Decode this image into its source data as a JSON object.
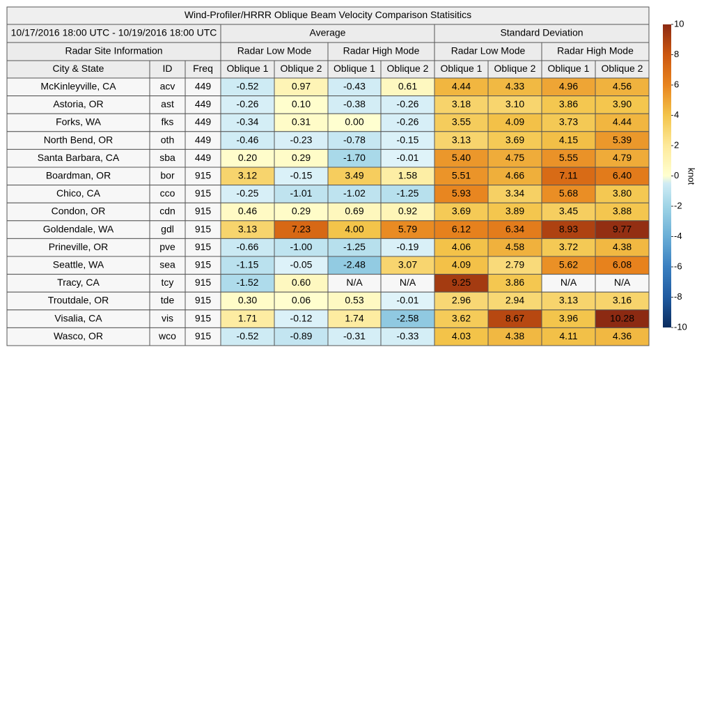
{
  "table": {
    "title": "Wind-Profiler/HRRR Oblique Beam Velocity Comparison Statisitics",
    "header_rows": [
      [
        "10/17/2016 18:00 UTC - 10/19/2016 18:00 UTC",
        "Average",
        "Standard Deviation"
      ],
      [
        "Radar Site Information",
        "Radar Low Mode",
        "Radar High Mode",
        "Radar Low Mode",
        "Radar High Mode"
      ],
      [
        "City & State",
        "ID",
        "Freq",
        "Oblique 1",
        "Oblique 2",
        "Oblique 1",
        "Oblique 2",
        "Oblique 1",
        "Oblique 2",
        "Oblique 1",
        "Oblique 2"
      ]
    ],
    "rows": [
      [
        "McKinleyville, CA",
        "acv",
        "449",
        "-0.52",
        "0.97",
        "-0.43",
        "0.61",
        "4.44",
        "4.33",
        "4.96",
        "4.56"
      ],
      [
        "Astoria, OR",
        "ast",
        "449",
        "-0.26",
        "0.10",
        "-0.38",
        "-0.26",
        "3.18",
        "3.10",
        "3.86",
        "3.90"
      ],
      [
        "Forks, WA",
        "fks",
        "449",
        "-0.34",
        "0.31",
        "0.00",
        "-0.26",
        "3.55",
        "4.09",
        "3.73",
        "4.44"
      ],
      [
        "North Bend, OR",
        "oth",
        "449",
        "-0.46",
        "-0.23",
        "-0.78",
        "-0.15",
        "3.13",
        "3.69",
        "4.15",
        "5.39"
      ],
      [
        "Santa Barbara, CA",
        "sba",
        "449",
        "0.20",
        "0.29",
        "-1.70",
        "-0.01",
        "5.40",
        "4.75",
        "5.55",
        "4.79"
      ],
      [
        "Boardman, OR",
        "bor",
        "915",
        "3.12",
        "-0.15",
        "3.49",
        "1.58",
        "5.51",
        "4.66",
        "7.11",
        "6.40"
      ],
      [
        "Chico, CA",
        "cco",
        "915",
        "-0.25",
        "-1.01",
        "-1.02",
        "-1.25",
        "5.93",
        "3.34",
        "5.68",
        "3.80"
      ],
      [
        "Condon, OR",
        "cdn",
        "915",
        "0.46",
        "0.29",
        "0.69",
        "0.92",
        "3.69",
        "3.89",
        "3.45",
        "3.88"
      ],
      [
        "Goldendale, WA",
        "gdl",
        "915",
        "3.13",
        "7.23",
        "4.00",
        "5.79",
        "6.12",
        "6.34",
        "8.93",
        "9.77"
      ],
      [
        "Prineville, OR",
        "pve",
        "915",
        "-0.66",
        "-1.00",
        "-1.25",
        "-0.19",
        "4.06",
        "4.58",
        "3.72",
        "4.38"
      ],
      [
        "Seattle, WA",
        "sea",
        "915",
        "-1.15",
        "-0.05",
        "-2.48",
        "3.07",
        "4.09",
        "2.79",
        "5.62",
        "6.08"
      ],
      [
        "Tracy, CA",
        "tcy",
        "915",
        "-1.52",
        "0.60",
        "N/A",
        "N/A",
        "9.25",
        "3.86",
        "N/A",
        "N/A"
      ],
      [
        "Troutdale, OR",
        "tde",
        "915",
        "0.30",
        "0.06",
        "0.53",
        "-0.01",
        "2.96",
        "2.94",
        "3.13",
        "3.16"
      ],
      [
        "Visalia, CA",
        "vis",
        "915",
        "1.71",
        "-0.12",
        "1.74",
        "-2.58",
        "3.62",
        "8.67",
        "3.96",
        "10.28"
      ],
      [
        "Wasco, OR",
        "wco",
        "915",
        "-0.52",
        "-0.89",
        "-0.31",
        "-0.33",
        "4.03",
        "4.38",
        "4.11",
        "4.36"
      ]
    ]
  },
  "colorbar": {
    "label": "knot",
    "range": [
      -10,
      10
    ],
    "ticks": [
      10,
      8,
      6,
      4,
      2,
      0,
      -2,
      -4,
      -6,
      -8,
      -10
    ]
  }
}
